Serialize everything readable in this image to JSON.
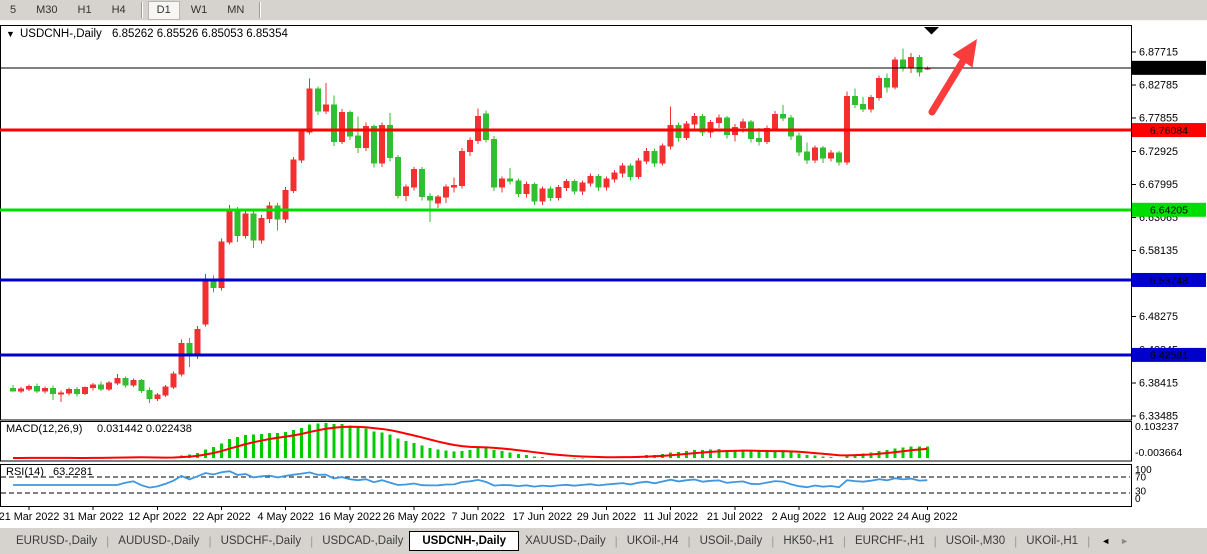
{
  "toolbar": {
    "timeframes": [
      {
        "label": "5",
        "active": false,
        "sep_after": false
      },
      {
        "label": "M30",
        "active": false,
        "sep_after": false
      },
      {
        "label": "H1",
        "active": false,
        "sep_after": false
      },
      {
        "label": "H4",
        "active": false,
        "sep_after": true
      },
      {
        "label": "D1",
        "active": true,
        "sep_after": false
      },
      {
        "label": "W1",
        "active": false,
        "sep_after": false
      },
      {
        "label": "MN",
        "active": false,
        "sep_after": true
      }
    ]
  },
  "chart_header": {
    "collapse_icon": "▼",
    "title": "USDCNH-,Daily",
    "ohlc": "6.85262 6.85526 6.85053 6.85354"
  },
  "chart_data": {
    "type": "candlestick",
    "symbol": "USDCNH-",
    "timeframe": "Daily",
    "last_ohlc": {
      "open": "6.85262",
      "high": "6.85526",
      "low": "6.85053",
      "close": "6.85354"
    },
    "y_axis_labels": [
      "6.87715",
      "6.82785",
      "6.77855",
      "6.72925",
      "6.67995",
      "6.63065",
      "6.58135",
      "6.53205",
      "6.48275",
      "6.43345",
      "6.38415",
      "6.33485"
    ],
    "x_tick_dates": [
      "21 Mar 2022",
      "31 Mar 2022",
      "12 Apr 2022",
      "22 Apr 2022",
      "4 May 2022",
      "16 May 2022",
      "26 May 2022",
      "7 Jun 2022",
      "17 Jun 2022",
      "29 Jun 2022",
      "11 Jul 2022",
      "21 Jul 2022",
      "2 Aug 2022",
      "12 Aug 2022",
      "24 Aug 2022"
    ],
    "x_first_tick_index": 2,
    "x_tick_step": 8,
    "price_lines": [
      {
        "price": 6.85354,
        "label": "6.85354",
        "color": "#000000",
        "text_color": "#ffffff",
        "width": 1,
        "kind": "bid-line"
      },
      {
        "price": 6.76084,
        "label": "6.76084",
        "color": "#ff0000",
        "text_color": "#ffffff",
        "width": 3,
        "kind": "resistance-line"
      },
      {
        "price": 6.64205,
        "label": "6.64205",
        "color": "#00dd00",
        "text_color": "#000000",
        "width": 3,
        "kind": "support-line"
      },
      {
        "price": 6.53748,
        "label": "6.53748",
        "color": "#0000cc",
        "text_color": "#ffffff",
        "width": 3,
        "kind": "support-line"
      },
      {
        "price": 6.42581,
        "label": "6.42581",
        "color": "#0000cc",
        "text_color": "#ffffff",
        "width": 3,
        "kind": "support-line"
      }
    ],
    "colors": {
      "bull": "#f23030",
      "bear": "#2fbf2f",
      "bg": "#ffffff",
      "border": "#000000"
    },
    "annotations": {
      "arrow_color": "#fa3c3c",
      "shift_marker_color": "#000000"
    },
    "indicators": {
      "macd": {
        "label": "MACD(12,26,9)",
        "values_text": "0.031442 0.022438",
        "params": [
          12,
          26,
          9
        ],
        "axis_max": "0.103237",
        "axis_min": "-0.003664",
        "histogram_color": "#00cc00",
        "signal_color": "#ff0000"
      },
      "rsi": {
        "label": "RSI(14)",
        "value_text": "63.2281",
        "period": 14,
        "axis_labels": [
          "100",
          "70",
          "30",
          "0"
        ],
        "levels": [
          70,
          30
        ],
        "line_color": "#3f97e0"
      }
    },
    "candles": [
      [
        6.376,
        6.381,
        6.371,
        6.372
      ],
      [
        6.372,
        6.378,
        6.369,
        6.375
      ],
      [
        6.375,
        6.382,
        6.372,
        6.379
      ],
      [
        6.379,
        6.383,
        6.369,
        6.372
      ],
      [
        6.372,
        6.379,
        6.368,
        6.376
      ],
      [
        6.376,
        6.38,
        6.359,
        6.368
      ],
      [
        6.368,
        6.373,
        6.356,
        6.369
      ],
      [
        6.369,
        6.377,
        6.365,
        6.374
      ],
      [
        6.374,
        6.378,
        6.364,
        6.368
      ],
      [
        6.368,
        6.379,
        6.366,
        6.377
      ],
      [
        6.377,
        6.384,
        6.373,
        6.381
      ],
      [
        6.381,
        6.386,
        6.372,
        6.375
      ],
      [
        6.375,
        6.387,
        6.372,
        6.384
      ],
      [
        6.384,
        6.397,
        6.381,
        6.391
      ],
      [
        6.391,
        6.394,
        6.377,
        6.381
      ],
      [
        6.381,
        6.391,
        6.378,
        6.388
      ],
      [
        6.388,
        6.39,
        6.369,
        6.373
      ],
      [
        6.373,
        6.377,
        6.354,
        6.361
      ],
      [
        6.361,
        6.369,
        6.357,
        6.366
      ],
      [
        6.366,
        6.381,
        6.363,
        6.378
      ],
      [
        6.378,
        6.401,
        6.375,
        6.397
      ],
      [
        6.397,
        6.449,
        6.394,
        6.443
      ],
      [
        6.443,
        6.451,
        6.408,
        6.424
      ],
      [
        6.424,
        6.469,
        6.42,
        6.464
      ],
      [
        6.472,
        6.546,
        6.468,
        6.537
      ],
      [
        6.537,
        6.544,
        6.519,
        6.526
      ],
      [
        6.526,
        6.599,
        6.522,
        6.594
      ],
      [
        6.594,
        6.649,
        6.59,
        6.641
      ],
      [
        6.641,
        6.646,
        6.594,
        6.604
      ],
      [
        6.604,
        6.641,
        6.599,
        6.636
      ],
      [
        6.636,
        6.64,
        6.585,
        6.597
      ],
      [
        6.597,
        6.634,
        6.592,
        6.629
      ],
      [
        6.629,
        6.654,
        6.622,
        6.648
      ],
      [
        6.648,
        6.652,
        6.611,
        6.628
      ],
      [
        6.628,
        6.676,
        6.622,
        6.671
      ],
      [
        6.671,
        6.721,
        6.667,
        6.716
      ],
      [
        6.716,
        6.762,
        6.712,
        6.758
      ],
      [
        6.758,
        6.838,
        6.754,
        6.822
      ],
      [
        6.822,
        6.826,
        6.783,
        6.789
      ],
      [
        6.789,
        6.831,
        6.785,
        6.798
      ],
      [
        6.798,
        6.812,
        6.737,
        6.744
      ],
      [
        6.744,
        6.792,
        6.74,
        6.787
      ],
      [
        6.787,
        6.79,
        6.746,
        6.752
      ],
      [
        6.752,
        6.781,
        6.727,
        6.735
      ],
      [
        6.735,
        6.772,
        6.73,
        6.766
      ],
      [
        6.766,
        6.769,
        6.705,
        6.712
      ],
      [
        6.712,
        6.772,
        6.706,
        6.768
      ],
      [
        6.768,
        6.786,
        6.714,
        6.72
      ],
      [
        6.72,
        6.724,
        6.659,
        6.663
      ],
      [
        6.663,
        6.68,
        6.655,
        6.676
      ],
      [
        6.676,
        6.706,
        6.671,
        6.702
      ],
      [
        6.702,
        6.706,
        6.656,
        6.662
      ],
      [
        6.662,
        6.667,
        6.624,
        6.657
      ],
      [
        6.652,
        6.664,
        6.645,
        6.661
      ],
      [
        6.661,
        6.68,
        6.652,
        6.676
      ],
      [
        6.676,
        6.69,
        6.668,
        6.678
      ],
      [
        6.678,
        6.734,
        6.674,
        6.729
      ],
      [
        6.729,
        6.75,
        6.722,
        6.745
      ],
      [
        6.745,
        6.793,
        6.74,
        6.781
      ],
      [
        6.785,
        6.79,
        6.742,
        6.747
      ],
      [
        6.747,
        6.752,
        6.67,
        6.676
      ],
      [
        6.676,
        6.692,
        6.668,
        6.688
      ],
      [
        6.688,
        6.704,
        6.68,
        6.685
      ],
      [
        6.685,
        6.689,
        6.661,
        6.666
      ],
      [
        6.666,
        6.684,
        6.66,
        6.68
      ],
      [
        6.68,
        6.683,
        6.649,
        6.655
      ],
      [
        6.655,
        6.677,
        6.649,
        6.673
      ],
      [
        6.673,
        6.677,
        6.655,
        6.66
      ],
      [
        6.66,
        6.679,
        6.656,
        6.675
      ],
      [
        6.675,
        6.688,
        6.67,
        6.684
      ],
      [
        6.684,
        6.687,
        6.665,
        6.67
      ],
      [
        6.67,
        6.686,
        6.664,
        6.682
      ],
      [
        6.682,
        6.696,
        6.677,
        6.692
      ],
      [
        6.692,
        6.695,
        6.67,
        6.676
      ],
      [
        6.676,
        6.692,
        6.671,
        6.688
      ],
      [
        6.688,
        6.701,
        6.683,
        6.697
      ],
      [
        6.697,
        6.712,
        6.69,
        6.707
      ],
      [
        6.707,
        6.711,
        6.686,
        6.692
      ],
      [
        6.692,
        6.719,
        6.688,
        6.715
      ],
      [
        6.715,
        6.734,
        6.71,
        6.729
      ],
      [
        6.729,
        6.733,
        6.706,
        6.712
      ],
      [
        6.712,
        6.741,
        6.708,
        6.737
      ],
      [
        6.737,
        6.796,
        6.732,
        6.768
      ],
      [
        6.768,
        6.772,
        6.744,
        6.75
      ],
      [
        6.75,
        6.774,
        6.746,
        6.77
      ],
      [
        6.77,
        6.786,
        6.762,
        6.781
      ],
      [
        6.781,
        6.785,
        6.752,
        6.758
      ],
      [
        6.758,
        6.776,
        6.75,
        6.772
      ],
      [
        6.772,
        6.784,
        6.764,
        6.779
      ],
      [
        6.779,
        6.782,
        6.748,
        6.754
      ],
      [
        6.754,
        6.77,
        6.744,
        6.765
      ],
      [
        6.765,
        6.778,
        6.757,
        6.773
      ],
      [
        6.773,
        6.776,
        6.742,
        6.748
      ],
      [
        6.748,
        6.764,
        6.738,
        6.744
      ],
      [
        6.744,
        6.768,
        6.74,
        6.763
      ],
      [
        6.763,
        6.789,
        6.759,
        6.784
      ],
      [
        6.784,
        6.798,
        6.774,
        6.779
      ],
      [
        6.779,
        6.783,
        6.746,
        6.752
      ],
      [
        6.752,
        6.757,
        6.722,
        6.728
      ],
      [
        6.728,
        6.742,
        6.71,
        6.716
      ],
      [
        6.716,
        6.738,
        6.712,
        6.734
      ],
      [
        6.734,
        6.737,
        6.712,
        6.719
      ],
      [
        6.719,
        6.731,
        6.714,
        6.727
      ],
      [
        6.727,
        6.73,
        6.708,
        6.713
      ],
      [
        6.713,
        6.818,
        6.709,
        6.811
      ],
      [
        6.811,
        6.823,
        6.794,
        6.799
      ],
      [
        6.799,
        6.81,
        6.788,
        6.792
      ],
      [
        6.792,
        6.813,
        6.787,
        6.809
      ],
      [
        6.809,
        6.842,
        6.805,
        6.838
      ],
      [
        6.838,
        6.845,
        6.817,
        6.825
      ],
      [
        6.825,
        6.87,
        6.821,
        6.865
      ],
      [
        6.865,
        6.882,
        6.848,
        6.853
      ],
      [
        6.853,
        6.876,
        6.846,
        6.869
      ],
      [
        6.869,
        6.873,
        6.841,
        6.847
      ],
      [
        6.85262,
        6.85526,
        6.85053,
        6.85354
      ]
    ]
  },
  "tabbar": {
    "tabs": [
      {
        "label": "EURUSD-,Daily",
        "active": false
      },
      {
        "label": "AUDUSD-,Daily",
        "active": false
      },
      {
        "label": "USDCHF-,Daily",
        "active": false
      },
      {
        "label": "USDCAD-,Daily",
        "active": false
      },
      {
        "label": "USDCNH-,Daily",
        "active": true
      },
      {
        "label": "XAUUSD-,Daily",
        "active": false
      },
      {
        "label": "UKOil-,H4",
        "active": false
      },
      {
        "label": "USOil-,Daily",
        "active": false
      },
      {
        "label": "HK50-,H1",
        "active": false
      },
      {
        "label": "EURCHF-,H1",
        "active": false
      },
      {
        "label": "USOil-,M30",
        "active": false
      },
      {
        "label": "UKOil-,H1",
        "active": false
      }
    ],
    "left_arrow": "◄",
    "right_arrow": "►"
  }
}
